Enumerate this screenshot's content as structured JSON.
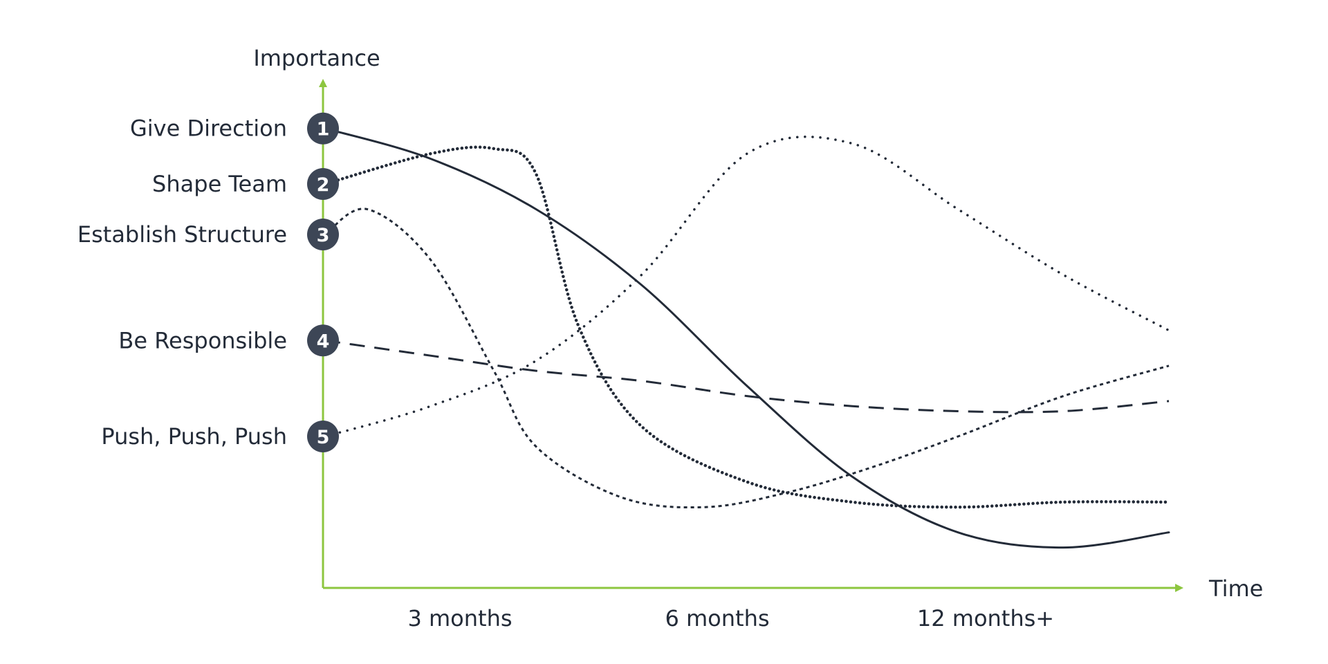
{
  "chart_data": {
    "type": "line",
    "ylabel": "Importance",
    "xlabel": "Time",
    "x_ticks": [
      "3 months",
      "6 months",
      "12 months+"
    ],
    "x_range": [
      0,
      4
    ],
    "y_range": [
      0,
      100
    ],
    "grid": false,
    "legend": "none",
    "series": [
      {
        "id": "1",
        "name": "Give Direction",
        "style": "solid",
        "x": [
          0,
          0.5,
          1.0,
          1.5,
          2.0,
          2.5,
          3.0,
          3.5,
          4.0
        ],
        "y": [
          91,
          85,
          75,
          60,
          40,
          22,
          11,
          8,
          11
        ]
      },
      {
        "id": "2",
        "name": "Shape Team",
        "style": "dense-dotted",
        "x": [
          0,
          0.5,
          0.8,
          1.0,
          1.2,
          1.5,
          2.0,
          2.5,
          3.0,
          3.5,
          4.0
        ],
        "y": [
          80,
          86,
          87,
          82,
          52,
          32,
          21,
          17,
          16,
          17,
          17
        ]
      },
      {
        "id": "3",
        "name": "Establish Structure",
        "style": "dotted",
        "x": [
          0,
          0.2,
          0.5,
          0.8,
          1.0,
          1.4,
          1.8,
          2.2,
          2.6,
          3.0,
          3.5,
          4.0
        ],
        "y": [
          70,
          75,
          65,
          43,
          28,
          18,
          16,
          19,
          24,
          30,
          38,
          44
        ]
      },
      {
        "id": "4",
        "name": "Be Responsible",
        "style": "dashed",
        "x": [
          0,
          0.5,
          1.0,
          1.5,
          2.0,
          2.5,
          3.0,
          3.5,
          4.0
        ],
        "y": [
          49,
          46,
          43,
          41,
          38,
          36,
          35,
          35,
          37
        ]
      },
      {
        "id": "5",
        "name": "Push, Push, Push",
        "style": "sparse-dotted",
        "x": [
          0,
          0.5,
          1.0,
          1.5,
          2.0,
          2.5,
          3.0,
          3.5,
          4.0
        ],
        "y": [
          30,
          36,
          45,
          62,
          86,
          88,
          75,
          62,
          51
        ]
      }
    ]
  },
  "colors": {
    "axis": "#8dc63f",
    "line": "#232b38",
    "badge": "#3d4656"
  }
}
